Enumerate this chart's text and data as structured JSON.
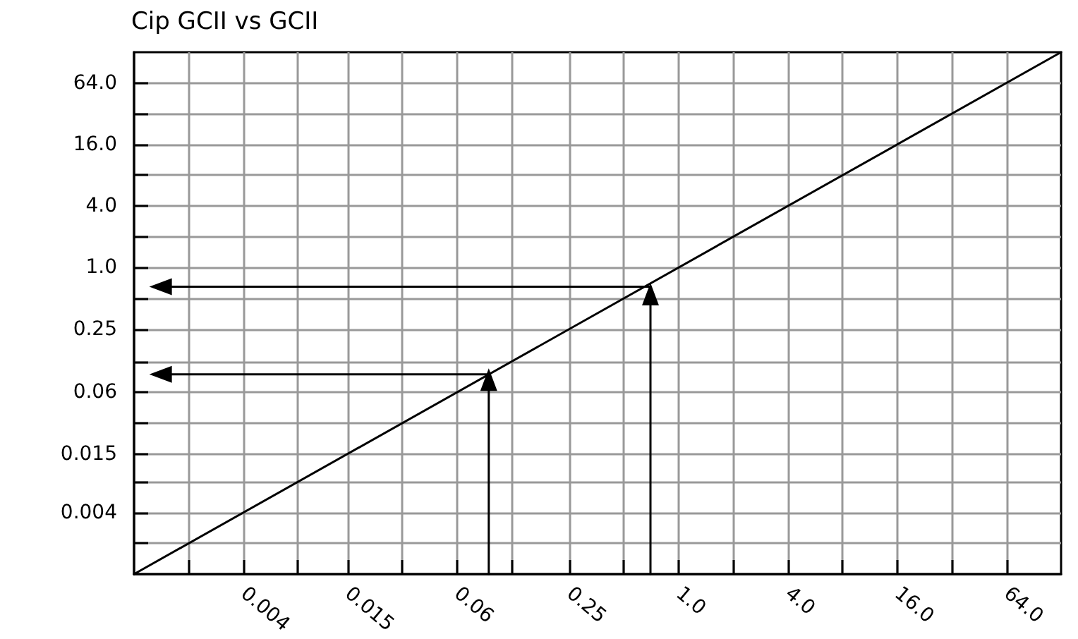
{
  "chart_data": {
    "type": "line",
    "title": "Cip GCII vs GCII",
    "log": "xy",
    "grid": true,
    "xlim": [
      0.001,
      128
    ],
    "ylim": [
      0.001,
      128
    ],
    "xticks": [
      {
        "value": 0.002,
        "label": null
      },
      {
        "value": 0.004,
        "label": "0.004"
      },
      {
        "value": 0.008,
        "label": null
      },
      {
        "value": 0.015,
        "label": "0.015"
      },
      {
        "value": 0.03,
        "label": null
      },
      {
        "value": 0.06,
        "label": "0.06"
      },
      {
        "value": 0.12,
        "label": null
      },
      {
        "value": 0.25,
        "label": "0.25"
      },
      {
        "value": 0.5,
        "label": null
      },
      {
        "value": 1,
        "label": "1.0"
      },
      {
        "value": 2,
        "label": null
      },
      {
        "value": 4,
        "label": "4.0"
      },
      {
        "value": 8,
        "label": null
      },
      {
        "value": 16,
        "label": "16.0"
      },
      {
        "value": 32,
        "label": null
      },
      {
        "value": 64,
        "label": "64.0"
      }
    ],
    "yticks": [
      {
        "value": 0.002,
        "label": null
      },
      {
        "value": 0.004,
        "label": "0.004"
      },
      {
        "value": 0.008,
        "label": null
      },
      {
        "value": 0.015,
        "label": "0.015"
      },
      {
        "value": 0.03,
        "label": null
      },
      {
        "value": 0.06,
        "label": "0.06"
      },
      {
        "value": 0.12,
        "label": null
      },
      {
        "value": 0.25,
        "label": "0.25"
      },
      {
        "value": 0.5,
        "label": null
      },
      {
        "value": 1,
        "label": "1.0"
      },
      {
        "value": 2,
        "label": null
      },
      {
        "value": 4,
        "label": "4.0"
      },
      {
        "value": 8,
        "label": null
      },
      {
        "value": 16,
        "label": "16.0"
      },
      {
        "value": 32,
        "label": null
      },
      {
        "value": 64,
        "label": "64.0"
      }
    ],
    "series": [
      {
        "color": "#000000",
        "marker": "none",
        "x": [
          0.001,
          128
        ],
        "values": [
          0.001,
          128
        ]
      },
      {
        "color": "#000000",
        "marker": "triangle",
        "x": [
          0.09,
          0.09
        ],
        "values": [
          0.001,
          0.08
        ]
      },
      {
        "color": "#000000",
        "marker": "triangle",
        "x": [
          0.09,
          0.0014
        ],
        "values": [
          0.09,
          0.09
        ]
      },
      {
        "color": "#000000",
        "marker": "triangle",
        "x": [
          0.7,
          0.7
        ],
        "values": [
          0.001,
          0.55
        ]
      },
      {
        "color": "#000000",
        "marker": "triangle",
        "x": [
          0.7,
          0.0014
        ],
        "values": [
          0.65,
          0.65
        ]
      }
    ]
  }
}
